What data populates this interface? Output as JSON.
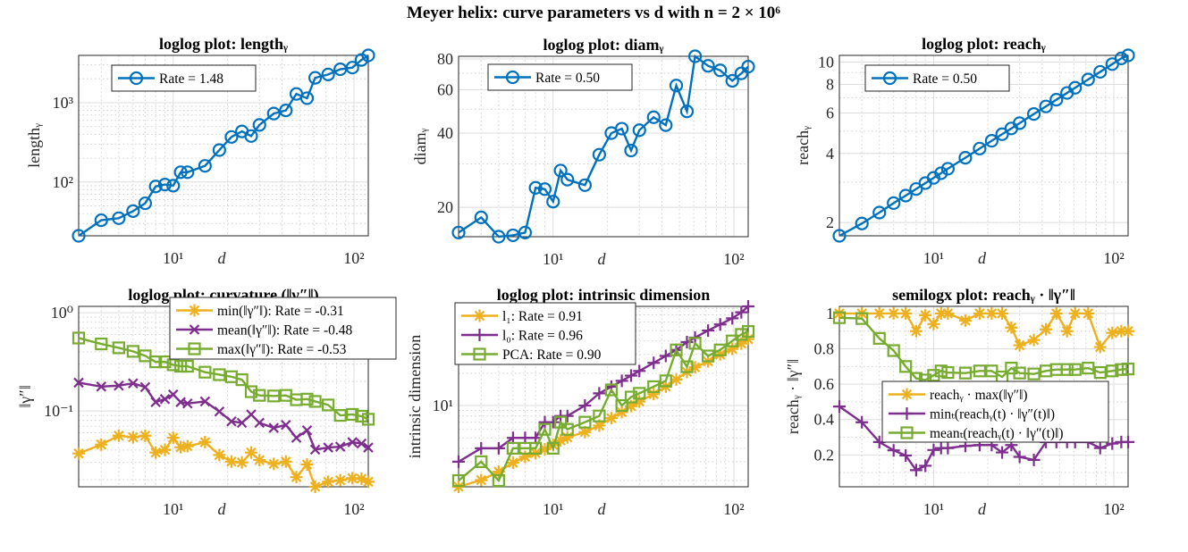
{
  "figure_title": "Meyer helix: curve parameters vs d with n = 2 × 10⁶",
  "colors": {
    "blue": "#0072BD",
    "orange": "#EDB120",
    "purple": "#7E2F8E",
    "green": "#77AC30"
  },
  "chart_data": [
    {
      "type": "line",
      "title": "loglog plot: lengthᵧ",
      "xlabel": "d",
      "ylabel": "lengthᵧ",
      "xscale": "log",
      "yscale": "log",
      "xlim": [
        3,
        120
      ],
      "ylim": [
        21,
        3950
      ],
      "xticks": [
        10,
        100
      ],
      "xticklabels": [
        "10¹",
        "10²"
      ],
      "yticks": [
        100,
        1000
      ],
      "yticklabels": [
        "10²",
        "10³"
      ],
      "grid": true,
      "minor_grid": true,
      "legend": {
        "location": "northwest"
      },
      "x": [
        3,
        4,
        5,
        6,
        7,
        8,
        9,
        10,
        11,
        12,
        15,
        18,
        21,
        24,
        27,
        30,
        36,
        42,
        48,
        55,
        61,
        72,
        84,
        98,
        110,
        120
      ],
      "series": [
        {
          "name": "Rate = 1.48",
          "color": "#0072BD",
          "marker": "circle",
          "values": [
            21,
            33,
            35,
            43,
            54,
            88,
            93,
            90,
            133,
            133,
            160,
            253,
            370,
            435,
            380,
            525,
            730,
            800,
            1290,
            1140,
            2060,
            2270,
            2640,
            2770,
            3460,
            3950
          ]
        }
      ]
    },
    {
      "type": "line",
      "title": "loglog plot: diamᵧ",
      "xlabel": "d",
      "ylabel": "diamᵧ",
      "xscale": "log",
      "yscale": "log",
      "xlim": [
        3,
        120
      ],
      "ylim": [
        15.2,
        82
      ],
      "xticks": [
        10,
        100
      ],
      "xticklabels": [
        "10¹",
        "10²"
      ],
      "yticks": [
        20,
        40,
        60,
        80
      ],
      "yticklabels": [
        "20",
        "40",
        "60",
        "80"
      ],
      "grid": true,
      "minor_grid": true,
      "legend": {
        "location": "northwest"
      },
      "x": [
        3,
        4,
        5,
        6,
        7,
        8,
        9,
        10,
        11,
        12,
        15,
        18,
        21,
        24,
        27,
        30,
        36,
        42,
        48,
        55,
        61,
        72,
        84,
        98,
        110,
        120
      ],
      "series": [
        {
          "name": "Rate = 0.50",
          "color": "#0072BD",
          "marker": "circle",
          "values": [
            15.8,
            18.2,
            15.2,
            15.4,
            15.8,
            24.0,
            23.7,
            21.1,
            28.2,
            25.9,
            24.6,
            32.7,
            40.0,
            41.7,
            34.0,
            41.1,
            46.4,
            43.1,
            62.4,
            49.0,
            82.0,
            75.0,
            71.9,
            65.2,
            69.9,
            74.4
          ]
        }
      ]
    },
    {
      "type": "line",
      "title": "loglog plot: reachᵧ",
      "xlabel": "d",
      "ylabel": "reachᵧ",
      "xscale": "log",
      "yscale": "log",
      "xlim": [
        3,
        120
      ],
      "ylim": [
        1.75,
        10.7
      ],
      "xticks": [
        10,
        100
      ],
      "xticklabels": [
        "10¹",
        "10²"
      ],
      "yticks": [
        2,
        4,
        6,
        8,
        10
      ],
      "yticklabels": [
        "2",
        "4",
        "6",
        "8",
        "10"
      ],
      "grid": true,
      "minor_grid": true,
      "legend": {
        "location": "northwest"
      },
      "x": [
        3,
        4,
        5,
        6,
        7,
        8,
        9,
        10,
        11,
        12,
        15,
        18,
        21,
        24,
        27,
        30,
        36,
        42,
        48,
        55,
        61,
        72,
        84,
        98,
        110,
        120
      ],
      "series": [
        {
          "name": "Rate = 0.50",
          "color": "#0072BD",
          "marker": "circle",
          "values": [
            1.75,
            1.98,
            2.21,
            2.43,
            2.62,
            2.8,
            2.97,
            3.13,
            3.28,
            3.43,
            3.83,
            4.2,
            4.54,
            4.85,
            5.14,
            5.42,
            5.94,
            6.41,
            6.86,
            7.34,
            7.73,
            8.4,
            9.07,
            9.8,
            10.38,
            10.7
          ]
        }
      ]
    },
    {
      "type": "line",
      "title": "loglog plot: curvature (‖γ″‖)",
      "xlabel": "d",
      "ylabel": "‖γ″‖",
      "xscale": "log",
      "yscale": "log",
      "xlim": [
        3,
        120
      ],
      "ylim": [
        0.0169,
        1.16
      ],
      "xticks": [
        10,
        100
      ],
      "xticklabels": [
        "10¹",
        "10²"
      ],
      "yticks": [
        0.1,
        1
      ],
      "yticklabels": [
        "10⁻¹",
        "10⁰"
      ],
      "grid": true,
      "minor_grid": true,
      "legend": {
        "location": "northeast"
      },
      "x": [
        3,
        4,
        5,
        6,
        7,
        8,
        9,
        10,
        11,
        12,
        15,
        18,
        21,
        24,
        27,
        30,
        36,
        42,
        48,
        55,
        61,
        72,
        84,
        98,
        110,
        120
      ],
      "series": [
        {
          "name": "min(‖γ″‖):    Rate = -0.31",
          "color": "#EDB120",
          "marker": "asterisk",
          "values": [
            0.0369,
            0.0455,
            0.056,
            0.054,
            0.056,
            0.0377,
            0.0402,
            0.0533,
            0.0427,
            0.0438,
            0.0481,
            0.0356,
            0.0305,
            0.0299,
            0.0377,
            0.0316,
            0.0289,
            0.0305,
            0.0212,
            0.0285,
            0.0169,
            0.019,
            0.0197,
            0.0207,
            0.0204,
            0.019
          ]
        },
        {
          "name": "mean(‖γ″‖): Rate = -0.48",
          "color": "#7E2F8E",
          "marker": "x",
          "values": [
            0.194,
            0.177,
            0.181,
            0.191,
            0.175,
            0.123,
            0.132,
            0.147,
            0.123,
            0.119,
            0.125,
            0.0986,
            0.0783,
            0.0757,
            0.092,
            0.0757,
            0.0672,
            0.072,
            0.0533,
            0.0635,
            0.0404,
            0.0424,
            0.0433,
            0.0481,
            0.0465,
            0.0424
          ]
        },
        {
          "name": "max(‖γ″‖):    Rate = -0.53",
          "color": "#77AC30",
          "marker": "square",
          "values": [
            0.552,
            0.481,
            0.439,
            0.404,
            0.364,
            0.316,
            0.316,
            0.295,
            0.285,
            0.285,
            0.248,
            0.234,
            0.223,
            0.208,
            0.157,
            0.144,
            0.142,
            0.144,
            0.13,
            0.132,
            0.125,
            0.115,
            0.0901,
            0.0922,
            0.0884,
            0.0823
          ]
        }
      ]
    },
    {
      "type": "line",
      "title": "loglog plot: intrinsic dimension",
      "xlabel": "d",
      "ylabel": "intrinsic dimension",
      "xscale": "log",
      "yscale": "log",
      "xlim": [
        3,
        120
      ],
      "ylim": [
        1.75,
        84
      ],
      "xticks": [
        10,
        100
      ],
      "xticklabels": [
        "10¹",
        "10²"
      ],
      "yticks": [
        10
      ],
      "yticklabels": [
        "10¹"
      ],
      "grid": true,
      "minor_grid": true,
      "legend": {
        "location": "northwest"
      },
      "x": [
        3,
        4,
        5,
        6,
        7,
        8,
        9,
        10,
        11,
        12,
        15,
        18,
        21,
        24,
        27,
        30,
        36,
        42,
        48,
        55,
        61,
        72,
        84,
        98,
        110,
        120
      ],
      "series": [
        {
          "name": "l₁:        Rate = 0.91",
          "color": "#EDB120",
          "marker": "asterisk",
          "values": [
            1.75,
            2.02,
            2.42,
            2.93,
            3.33,
            3.61,
            3.91,
            4.3,
            4.73,
            5.05,
            5.66,
            6.51,
            7.64,
            8.69,
            9.87,
            10.9,
            12.8,
            15.0,
            17.5,
            20.6,
            22.7,
            25.8,
            29.9,
            33.7,
            37.8,
            41.6
          ]
        },
        {
          "name": "l₀:        Rate = 0.96",
          "color": "#7E2F8E",
          "marker": "plus",
          "values": [
            3,
            4,
            4,
            5,
            5,
            5,
            7,
            7,
            8,
            8,
            10,
            13,
            15,
            17,
            19,
            21,
            25,
            29,
            33,
            39,
            43,
            50,
            57,
            65,
            74,
            84
          ]
        },
        {
          "name": "PCA: Rate = 0.90",
          "color": "#77AC30",
          "marker": "square",
          "values": [
            2,
            3,
            2,
            4,
            4,
            4,
            6,
            4,
            7,
            6,
            7,
            8,
            14,
            10,
            12,
            13,
            15,
            17,
            33,
            23,
            38,
            29,
            33,
            40,
            46,
            49
          ]
        }
      ]
    },
    {
      "type": "line",
      "title": "semilogx plot: reachᵧ · ‖γ″‖",
      "xlabel": "d",
      "ylabel": "reachᵧ · ‖γ″‖",
      "xscale": "log",
      "yscale": "linear",
      "xlim": [
        3,
        120
      ],
      "ylim": [
        0.02,
        1.04
      ],
      "xticks": [
        10,
        100
      ],
      "xticklabels": [
        "10¹",
        "10²"
      ],
      "yticks": [
        0.2,
        0.4,
        0.6,
        0.8,
        1
      ],
      "yticklabels": [
        "0.2",
        "0.4",
        "0.6",
        "0.8",
        "1"
      ],
      "grid": true,
      "minor_grid": true,
      "legend": {
        "location": "east"
      },
      "x": [
        3,
        4,
        5,
        6,
        7,
        8,
        9,
        10,
        11,
        12,
        15,
        18,
        21,
        24,
        27,
        30,
        36,
        42,
        48,
        55,
        61,
        72,
        84,
        98,
        110,
        120
      ],
      "series": [
        {
          "name": "reachᵧ · max(‖γ″‖)",
          "color": "#EDB120",
          "marker": "asterisk",
          "values": [
            1.0,
            1.0,
            1.0,
            1.0,
            1.0,
            0.9,
            0.99,
            0.94,
            1.0,
            1.0,
            0.96,
            1.0,
            1.0,
            1.0,
            0.92,
            0.82,
            0.85,
            0.91,
            1.0,
            0.9,
            1.0,
            1.0,
            0.81,
            0.89,
            0.9,
            0.9
          ]
        },
        {
          "name": "minₜ(reachᵧ(t) · ‖γ″(t)‖)",
          "color": "#7E2F8E",
          "marker": "plus",
          "values": [
            0.474,
            0.385,
            0.273,
            0.226,
            0.197,
            0.114,
            0.139,
            0.228,
            0.239,
            0.239,
            0.251,
            0.256,
            0.256,
            0.214,
            0.256,
            0.189,
            0.172,
            0.273,
            0.273,
            0.273,
            0.273,
            0.273,
            0.239,
            0.264,
            0.273,
            0.273
          ]
        },
        {
          "name": "meanₜ(reachᵧ(t) · ‖γ″(t)‖)",
          "color": "#77AC30",
          "marker": "square",
          "values": [
            0.976,
            0.971,
            0.859,
            0.79,
            0.7,
            0.633,
            0.624,
            0.65,
            0.675,
            0.666,
            0.663,
            0.675,
            0.675,
            0.641,
            0.691,
            0.663,
            0.658,
            0.675,
            0.683,
            0.683,
            0.683,
            0.691,
            0.666,
            0.675,
            0.683,
            0.686
          ]
        }
      ]
    }
  ]
}
